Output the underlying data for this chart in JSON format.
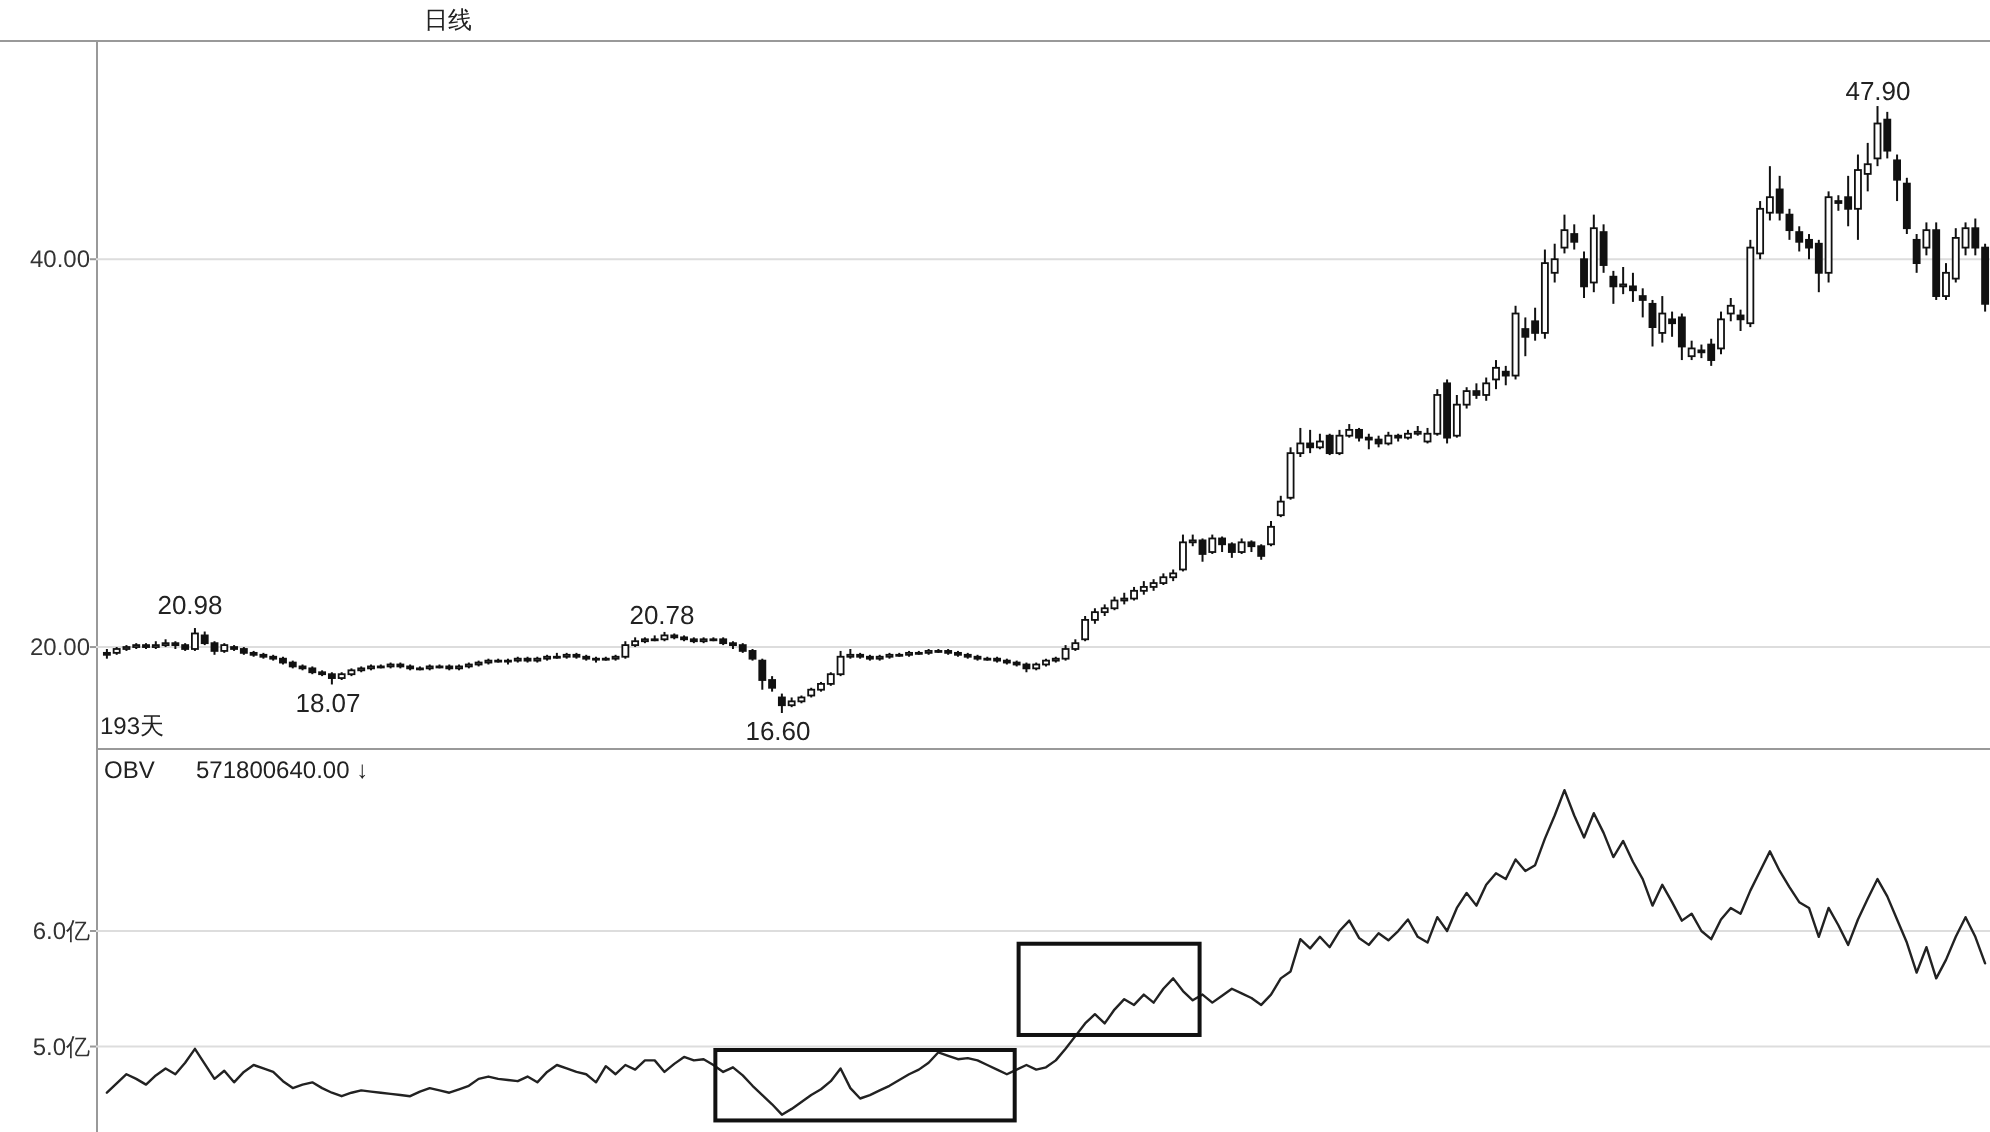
{
  "chart_data": [
    {
      "type": "candlestick",
      "categories": [
        null,
        null,
        null,
        null,
        null,
        null,
        null,
        null,
        null,
        null,
        null,
        null,
        null,
        null,
        null,
        null,
        null,
        null,
        null,
        null,
        null,
        null,
        null,
        null,
        null,
        null,
        null,
        null,
        null,
        null,
        null,
        null,
        null,
        null,
        null,
        null,
        null,
        null,
        null,
        null,
        null,
        null,
        null,
        null,
        null,
        null,
        null,
        null,
        null,
        null,
        null,
        null,
        null,
        null,
        null,
        null,
        null,
        null,
        null,
        null,
        null,
        null,
        null,
        null,
        null,
        null,
        null,
        null,
        null,
        null,
        null,
        null,
        null,
        null,
        null,
        null,
        null,
        null,
        null,
        null,
        null,
        null,
        null,
        null,
        null,
        null,
        null,
        null,
        null,
        null,
        null,
        null,
        null,
        null,
        null,
        null,
        null,
        null,
        null,
        null,
        null,
        null,
        null,
        null,
        null,
        null,
        null,
        null,
        null,
        null,
        null,
        null,
        null,
        null,
        null,
        null,
        null,
        null,
        null,
        null,
        null,
        null,
        null,
        null,
        null,
        null,
        null,
        null,
        null,
        null,
        null,
        null,
        null,
        null,
        null,
        null,
        null,
        null,
        null,
        null,
        null,
        null,
        null,
        null,
        null,
        null,
        null,
        null,
        null,
        null,
        null,
        null,
        null,
        null,
        null,
        null,
        null,
        null,
        null,
        null,
        null,
        null,
        null,
        null,
        null,
        null,
        null,
        null,
        null,
        null,
        null,
        null,
        null,
        null,
        null,
        null,
        null,
        null,
        null,
        null,
        null,
        null,
        null,
        null,
        null,
        null,
        null,
        null,
        null,
        null,
        null,
        null,
        null
      ],
      "ohlc": [
        [
          19.7,
          19.9,
          19.4,
          19.6
        ],
        [
          19.7,
          20.0,
          19.6,
          19.9
        ],
        [
          19.9,
          20.1,
          19.8,
          20.0
        ],
        [
          20.0,
          20.2,
          19.9,
          20.1
        ],
        [
          20.1,
          20.2,
          19.9,
          20.0
        ],
        [
          20.0,
          20.3,
          19.9,
          20.1
        ],
        [
          20.1,
          20.4,
          20.0,
          20.2
        ],
        [
          20.2,
          20.3,
          19.9,
          20.1
        ],
        [
          20.1,
          20.2,
          19.8,
          19.9
        ],
        [
          19.9,
          20.98,
          19.8,
          20.7
        ],
        [
          20.6,
          20.8,
          20.1,
          20.2
        ],
        [
          20.2,
          20.3,
          19.6,
          19.8
        ],
        [
          19.8,
          20.2,
          19.7,
          20.1
        ],
        [
          20.0,
          20.1,
          19.8,
          19.9
        ],
        [
          19.9,
          20.0,
          19.6,
          19.7
        ],
        [
          19.7,
          19.8,
          19.5,
          19.6
        ],
        [
          19.6,
          19.7,
          19.4,
          19.5
        ],
        [
          19.5,
          19.6,
          19.3,
          19.4
        ],
        [
          19.4,
          19.5,
          19.1,
          19.2
        ],
        [
          19.2,
          19.3,
          18.9,
          19.0
        ],
        [
          19.0,
          19.1,
          18.8,
          18.9
        ],
        [
          18.9,
          19.0,
          18.6,
          18.7
        ],
        [
          18.7,
          18.8,
          18.5,
          18.6
        ],
        [
          18.6,
          18.7,
          18.07,
          18.4
        ],
        [
          18.4,
          18.7,
          18.3,
          18.6
        ],
        [
          18.6,
          18.9,
          18.5,
          18.8
        ],
        [
          18.8,
          19.0,
          18.7,
          18.9
        ],
        [
          18.9,
          19.1,
          18.8,
          19.0
        ],
        [
          19.0,
          19.1,
          18.9,
          19.0
        ],
        [
          19.0,
          19.2,
          18.9,
          19.1
        ],
        [
          19.1,
          19.2,
          18.9,
          19.0
        ],
        [
          19.0,
          19.1,
          18.8,
          18.9
        ],
        [
          18.9,
          19.0,
          18.8,
          18.9
        ],
        [
          18.9,
          19.1,
          18.8,
          19.0
        ],
        [
          19.0,
          19.1,
          18.9,
          19.0
        ],
        [
          19.0,
          19.1,
          18.8,
          18.9
        ],
        [
          18.9,
          19.1,
          18.8,
          19.0
        ],
        [
          19.0,
          19.2,
          18.9,
          19.1
        ],
        [
          19.1,
          19.3,
          19.0,
          19.2
        ],
        [
          19.2,
          19.4,
          19.1,
          19.3
        ],
        [
          19.3,
          19.4,
          19.2,
          19.3
        ],
        [
          19.3,
          19.4,
          19.1,
          19.3
        ],
        [
          19.3,
          19.5,
          19.2,
          19.4
        ],
        [
          19.4,
          19.5,
          19.2,
          19.3
        ],
        [
          19.3,
          19.5,
          19.2,
          19.4
        ],
        [
          19.4,
          19.6,
          19.3,
          19.5
        ],
        [
          19.5,
          19.7,
          19.4,
          19.5
        ],
        [
          19.5,
          19.7,
          19.4,
          19.6
        ],
        [
          19.6,
          19.7,
          19.4,
          19.5
        ],
        [
          19.5,
          19.6,
          19.3,
          19.4
        ],
        [
          19.4,
          19.5,
          19.2,
          19.4
        ],
        [
          19.4,
          19.5,
          19.3,
          19.4
        ],
        [
          19.4,
          19.6,
          19.3,
          19.5
        ],
        [
          19.5,
          20.3,
          19.4,
          20.1
        ],
        [
          20.1,
          20.5,
          20.0,
          20.3
        ],
        [
          20.3,
          20.5,
          20.2,
          20.4
        ],
        [
          20.4,
          20.6,
          20.3,
          20.4
        ],
        [
          20.4,
          20.78,
          20.3,
          20.6
        ],
        [
          20.6,
          20.7,
          20.4,
          20.5
        ],
        [
          20.5,
          20.6,
          20.3,
          20.4
        ],
        [
          20.4,
          20.5,
          20.2,
          20.3
        ],
        [
          20.3,
          20.5,
          20.2,
          20.4
        ],
        [
          20.4,
          20.5,
          20.3,
          20.4
        ],
        [
          20.4,
          20.5,
          20.1,
          20.2
        ],
        [
          20.2,
          20.3,
          19.9,
          20.1
        ],
        [
          20.1,
          20.2,
          19.7,
          19.8
        ],
        [
          19.8,
          19.9,
          19.3,
          19.4
        ],
        [
          19.3,
          19.4,
          17.8,
          18.3
        ],
        [
          18.3,
          18.5,
          17.7,
          17.9
        ],
        [
          17.4,
          17.6,
          16.6,
          17.0
        ],
        [
          17.0,
          17.4,
          16.9,
          17.2
        ],
        [
          17.2,
          17.5,
          17.1,
          17.4
        ],
        [
          17.5,
          17.9,
          17.4,
          17.8
        ],
        [
          17.8,
          18.2,
          17.7,
          18.1
        ],
        [
          18.1,
          18.7,
          18.0,
          18.6
        ],
        [
          18.6,
          19.8,
          18.5,
          19.5
        ],
        [
          19.5,
          19.9,
          19.4,
          19.6
        ],
        [
          19.6,
          19.7,
          19.4,
          19.5
        ],
        [
          19.5,
          19.6,
          19.3,
          19.4
        ],
        [
          19.4,
          19.6,
          19.3,
          19.5
        ],
        [
          19.5,
          19.7,
          19.4,
          19.6
        ],
        [
          19.6,
          19.7,
          19.5,
          19.6
        ],
        [
          19.6,
          19.8,
          19.5,
          19.7
        ],
        [
          19.7,
          19.8,
          19.6,
          19.7
        ],
        [
          19.7,
          19.9,
          19.6,
          19.8
        ],
        [
          19.8,
          19.9,
          19.7,
          19.8
        ],
        [
          19.8,
          19.9,
          19.6,
          19.7
        ],
        [
          19.7,
          19.8,
          19.5,
          19.6
        ],
        [
          19.6,
          19.7,
          19.4,
          19.5
        ],
        [
          19.5,
          19.6,
          19.3,
          19.4
        ],
        [
          19.4,
          19.5,
          19.3,
          19.4
        ],
        [
          19.4,
          19.5,
          19.2,
          19.3
        ],
        [
          19.3,
          19.4,
          19.1,
          19.2
        ],
        [
          19.2,
          19.3,
          19.0,
          19.1
        ],
        [
          19.1,
          19.2,
          18.7,
          18.9
        ],
        [
          18.9,
          19.2,
          18.8,
          19.1
        ],
        [
          19.1,
          19.4,
          19.0,
          19.3
        ],
        [
          19.3,
          19.5,
          19.2,
          19.4
        ],
        [
          19.4,
          20.1,
          19.3,
          19.9
        ],
        [
          19.9,
          20.4,
          19.8,
          20.2
        ],
        [
          20.4,
          21.6,
          20.3,
          21.4
        ],
        [
          21.4,
          22.0,
          21.2,
          21.8
        ],
        [
          21.8,
          22.2,
          21.6,
          22.0
        ],
        [
          22.0,
          22.6,
          21.9,
          22.4
        ],
        [
          22.4,
          22.8,
          22.2,
          22.5
        ],
        [
          22.5,
          23.1,
          22.4,
          22.9
        ],
        [
          22.9,
          23.4,
          22.7,
          23.1
        ],
        [
          23.1,
          23.5,
          22.9,
          23.3
        ],
        [
          23.3,
          23.8,
          23.2,
          23.6
        ],
        [
          23.6,
          24.0,
          23.4,
          23.8
        ],
        [
          24.0,
          25.8,
          23.9,
          25.4
        ],
        [
          25.4,
          25.8,
          25.2,
          25.5
        ],
        [
          25.5,
          25.6,
          24.4,
          24.8
        ],
        [
          24.9,
          25.8,
          24.8,
          25.6
        ],
        [
          25.6,
          25.7,
          24.9,
          25.3
        ],
        [
          25.3,
          25.4,
          24.6,
          24.9
        ],
        [
          24.9,
          25.6,
          24.8,
          25.4
        ],
        [
          25.4,
          25.5,
          24.9,
          25.2
        ],
        [
          25.2,
          25.3,
          24.5,
          24.7
        ],
        [
          25.3,
          26.5,
          25.2,
          26.2
        ],
        [
          26.8,
          27.8,
          26.7,
          27.5
        ],
        [
          27.7,
          30.3,
          27.6,
          30.0
        ],
        [
          30.0,
          31.3,
          29.8,
          30.5
        ],
        [
          30.5,
          31.2,
          30.0,
          30.3
        ],
        [
          30.3,
          31.0,
          30.2,
          30.6
        ],
        [
          30.9,
          31.0,
          29.9,
          30.0
        ],
        [
          30.0,
          31.2,
          29.9,
          30.9
        ],
        [
          30.9,
          31.5,
          30.8,
          31.2
        ],
        [
          31.2,
          31.3,
          30.6,
          30.8
        ],
        [
          30.8,
          31.0,
          30.2,
          30.7
        ],
        [
          30.7,
          30.9,
          30.3,
          30.5
        ],
        [
          30.5,
          31.1,
          30.4,
          30.9
        ],
        [
          30.9,
          31.0,
          30.6,
          30.8
        ],
        [
          30.8,
          31.2,
          30.7,
          31.0
        ],
        [
          31.0,
          31.4,
          30.9,
          31.1
        ],
        [
          30.6,
          31.3,
          30.5,
          31.0
        ],
        [
          31.0,
          33.3,
          30.9,
          33.0
        ],
        [
          33.6,
          33.8,
          30.5,
          30.8
        ],
        [
          30.9,
          33.0,
          30.8,
          32.5
        ],
        [
          32.5,
          33.4,
          32.3,
          33.2
        ],
        [
          33.2,
          33.6,
          32.8,
          33.0
        ],
        [
          33.0,
          33.9,
          32.7,
          33.6
        ],
        [
          33.8,
          34.8,
          33.3,
          34.4
        ],
        [
          34.2,
          34.5,
          33.5,
          34.0
        ],
        [
          34.0,
          37.6,
          33.8,
          37.2
        ],
        [
          36.4,
          37.0,
          35.0,
          36.0
        ],
        [
          36.8,
          37.5,
          35.8,
          36.2
        ],
        [
          36.2,
          40.5,
          35.9,
          39.8
        ],
        [
          39.3,
          40.8,
          38.8,
          40.0
        ],
        [
          40.6,
          42.3,
          40.3,
          41.5
        ],
        [
          41.3,
          41.8,
          40.5,
          40.9
        ],
        [
          40.0,
          40.4,
          38.0,
          38.6
        ],
        [
          38.8,
          42.3,
          38.3,
          41.6
        ],
        [
          41.4,
          41.8,
          39.3,
          39.7
        ],
        [
          39.1,
          39.4,
          37.7,
          38.6
        ],
        [
          38.6,
          39.6,
          38.2,
          38.7
        ],
        [
          38.6,
          39.3,
          37.8,
          38.4
        ],
        [
          38.1,
          38.5,
          37.0,
          37.9
        ],
        [
          37.7,
          37.9,
          35.5,
          36.5
        ],
        [
          36.2,
          38.1,
          35.7,
          37.2
        ],
        [
          36.9,
          37.3,
          36.0,
          36.7
        ],
        [
          37.0,
          37.2,
          34.8,
          35.5
        ],
        [
          35.0,
          35.8,
          34.8,
          35.4
        ],
        [
          35.3,
          35.6,
          34.9,
          35.2
        ],
        [
          35.6,
          35.9,
          34.5,
          34.8
        ],
        [
          35.4,
          37.3,
          35.1,
          36.9
        ],
        [
          37.2,
          38.0,
          36.8,
          37.6
        ],
        [
          37.1,
          37.4,
          36.3,
          36.9
        ],
        [
          36.7,
          41.0,
          36.5,
          40.6
        ],
        [
          40.3,
          43.0,
          40.0,
          42.6
        ],
        [
          42.4,
          44.8,
          42.0,
          43.2
        ],
        [
          43.6,
          44.3,
          42.0,
          42.4
        ],
        [
          42.3,
          42.6,
          41.0,
          41.5
        ],
        [
          41.4,
          41.7,
          40.4,
          40.9
        ],
        [
          41.0,
          41.3,
          40.0,
          40.6
        ],
        [
          40.8,
          41.0,
          38.3,
          39.3
        ],
        [
          39.3,
          43.5,
          38.8,
          43.2
        ],
        [
          43.0,
          43.3,
          42.5,
          42.9
        ],
        [
          43.2,
          44.3,
          41.7,
          42.6
        ],
        [
          42.6,
          45.4,
          41.0,
          44.6
        ],
        [
          44.4,
          46.0,
          43.5,
          44.9
        ],
        [
          45.2,
          47.9,
          44.8,
          47.0
        ],
        [
          47.2,
          47.6,
          45.2,
          45.6
        ],
        [
          45.1,
          45.4,
          43.0,
          44.1
        ],
        [
          43.9,
          44.2,
          41.3,
          41.6
        ],
        [
          41.0,
          41.3,
          39.3,
          39.8
        ],
        [
          40.6,
          41.9,
          40.2,
          41.5
        ],
        [
          41.5,
          41.9,
          37.9,
          38.1
        ],
        [
          38.1,
          39.8,
          37.9,
          39.3
        ],
        [
          39.0,
          41.6,
          38.8,
          41.1
        ],
        [
          40.6,
          41.9,
          40.2,
          41.6
        ],
        [
          41.6,
          42.1,
          40.2,
          40.6
        ],
        [
          40.6,
          40.8,
          37.3,
          37.7
        ]
      ],
      "ylim": [
        15.0,
        51.1
      ],
      "yticks": [
        {
          "value": 20,
          "label": "20.00"
        },
        {
          "value": 40,
          "label": "40.00"
        }
      ],
      "grid": "y",
      "annotations": [
        "日线",
        "193天",
        "20.98",
        "18.07",
        "20.78",
        "16.60",
        "47.90"
      ]
    },
    {
      "type": "line",
      "categories": [
        null,
        null,
        null,
        null,
        null,
        null,
        null,
        null,
        null,
        null,
        null,
        null,
        null,
        null,
        null,
        null,
        null,
        null,
        null,
        null,
        null,
        null,
        null,
        null,
        null,
        null,
        null,
        null,
        null,
        null,
        null,
        null,
        null,
        null,
        null,
        null,
        null,
        null,
        null,
        null,
        null,
        null,
        null,
        null,
        null,
        null,
        null,
        null,
        null,
        null,
        null,
        null,
        null,
        null,
        null,
        null,
        null,
        null,
        null,
        null,
        null,
        null,
        null,
        null,
        null,
        null,
        null,
        null,
        null,
        null,
        null,
        null,
        null,
        null,
        null,
        null,
        null,
        null,
        null,
        null,
        null,
        null,
        null,
        null,
        null,
        null,
        null,
        null,
        null,
        null,
        null,
        null,
        null,
        null,
        null,
        null,
        null,
        null,
        null,
        null,
        null,
        null,
        null,
        null,
        null,
        null,
        null,
        null,
        null,
        null,
        null,
        null,
        null,
        null,
        null,
        null,
        null,
        null,
        null,
        null,
        null,
        null,
        null,
        null,
        null,
        null,
        null,
        null,
        null,
        null,
        null,
        null,
        null,
        null,
        null,
        null,
        null,
        null,
        null,
        null,
        null,
        null,
        null,
        null,
        null,
        null,
        null,
        null,
        null,
        null,
        null,
        null,
        null,
        null,
        null,
        null,
        null,
        null,
        null,
        null,
        null,
        null,
        null,
        null,
        null,
        null,
        null,
        null,
        null,
        null,
        null,
        null,
        null,
        null,
        null,
        null,
        null,
        null,
        null,
        null,
        null,
        null,
        null,
        null,
        null,
        null,
        null,
        null,
        null,
        null,
        null,
        null,
        null
      ],
      "series": [
        {
          "color": "#222222",
          "values": [
            4.6,
            4.68,
            4.76,
            4.72,
            4.67,
            4.75,
            4.81,
            4.76,
            4.86,
            4.98,
            4.85,
            4.72,
            4.79,
            4.69,
            4.78,
            4.84,
            4.81,
            4.78,
            4.7,
            4.64,
            4.67,
            4.69,
            4.64,
            4.6,
            4.57,
            4.6,
            4.62,
            4.61,
            4.6,
            4.59,
            4.58,
            4.57,
            4.61,
            4.64,
            4.62,
            4.6,
            4.63,
            4.66,
            4.72,
            4.74,
            4.72,
            4.71,
            4.7,
            4.74,
            4.69,
            4.78,
            4.84,
            4.81,
            4.78,
            4.76,
            4.69,
            4.83,
            4.76,
            4.84,
            4.8,
            4.88,
            4.88,
            4.78,
            4.85,
            4.91,
            4.88,
            4.89,
            4.84,
            4.78,
            4.82,
            4.75,
            4.66,
            4.58,
            4.5,
            4.41,
            4.46,
            4.52,
            4.58,
            4.63,
            4.7,
            4.81,
            4.64,
            4.55,
            4.58,
            4.62,
            4.66,
            4.71,
            4.76,
            4.8,
            4.86,
            4.95,
            4.92,
            4.89,
            4.9,
            4.88,
            4.84,
            4.8,
            4.76,
            4.8,
            4.84,
            4.8,
            4.82,
            4.88,
            4.98,
            5.09,
            5.2,
            5.28,
            5.2,
            5.32,
            5.41,
            5.36,
            5.45,
            5.38,
            5.5,
            5.59,
            5.48,
            5.4,
            5.45,
            5.38,
            5.44,
            5.5,
            5.46,
            5.42,
            5.36,
            5.45,
            5.59,
            5.65,
            5.93,
            5.85,
            5.95,
            5.86,
            6.0,
            6.09,
            5.94,
            5.88,
            5.98,
            5.92,
            6.0,
            6.1,
            5.95,
            5.9,
            6.12,
            6.0,
            6.2,
            6.33,
            6.22,
            6.4,
            6.5,
            6.45,
            6.62,
            6.52,
            6.57,
            6.8,
            7.0,
            7.22,
            7.0,
            6.81,
            7.02,
            6.85,
            6.64,
            6.78,
            6.6,
            6.45,
            6.22,
            6.4,
            6.25,
            6.09,
            6.15,
            6.0,
            5.93,
            6.1,
            6.2,
            6.15,
            6.35,
            6.52,
            6.69,
            6.52,
            6.38,
            6.25,
            6.2,
            5.95,
            6.2,
            6.05,
            5.88,
            6.1,
            6.28,
            6.45,
            6.3,
            6.1,
            5.9,
            5.64,
            5.86,
            5.59,
            5.75,
            5.95,
            6.12,
            5.95,
            5.72
          ]
        }
      ],
      "ylim": [
        4.26,
        7.55
      ],
      "yticks": [
        {
          "value": 5,
          "label": "5.0亿"
        },
        {
          "value": 6,
          "label": "6.0亿"
        }
      ],
      "grid": "y",
      "annotations": [
        "OBV",
        "571800640.00 ↓"
      ]
    }
  ]
}
